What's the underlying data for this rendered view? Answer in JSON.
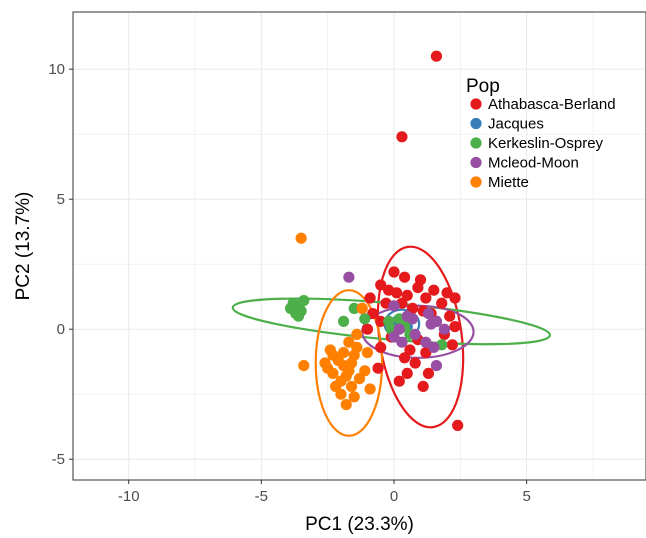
{
  "chart_data": {
    "type": "scatter",
    "xlabel": "PC1 (23.3%)",
    "ylabel": "PC2 (13.7%)",
    "xlim": [
      -12.1,
      9.5
    ],
    "ylim": [
      -5.8,
      12.2
    ],
    "x_ticks": [
      -10,
      -5,
      0,
      5
    ],
    "y_ticks": [
      -5,
      0,
      5,
      10
    ],
    "x_tick_labels": [
      "-10",
      "-5",
      "0",
      "5"
    ],
    "y_tick_labels": [
      "-5",
      "0",
      "5",
      "10"
    ],
    "grid": true,
    "legend": {
      "title": "Pop",
      "position": "top-right"
    },
    "series": [
      {
        "name": "Athabasca-Berland",
        "color": "#e41a1c",
        "ellipse": {
          "cx": 1.0,
          "cy": -0.3,
          "rx": 1.55,
          "ry": 3.5,
          "angle": -8
        },
        "points": [
          [
            1.6,
            10.5
          ],
          [
            0.3,
            7.4
          ],
          [
            2.4,
            -3.7
          ],
          [
            0.0,
            2.2
          ],
          [
            0.4,
            2.0
          ],
          [
            1.0,
            1.9
          ],
          [
            0.9,
            1.6
          ],
          [
            1.5,
            1.5
          ],
          [
            -0.5,
            1.7
          ],
          [
            -0.2,
            1.5
          ],
          [
            0.1,
            1.4
          ],
          [
            0.5,
            1.3
          ],
          [
            1.2,
            1.2
          ],
          [
            2.0,
            1.4
          ],
          [
            -0.9,
            1.2
          ],
          [
            -0.3,
            1.0
          ],
          [
            0.3,
            1.0
          ],
          [
            1.8,
            1.0
          ],
          [
            2.3,
            1.2
          ],
          [
            0.7,
            0.8
          ],
          [
            1.1,
            0.7
          ],
          [
            -1.2,
            0.8
          ],
          [
            -0.8,
            0.6
          ],
          [
            1.4,
            0.6
          ],
          [
            2.1,
            0.5
          ],
          [
            -0.5,
            0.3
          ],
          [
            0.0,
            0.1
          ],
          [
            1.6,
            0.3
          ],
          [
            2.3,
            0.1
          ],
          [
            -1.0,
            0.0
          ],
          [
            1.9,
            -0.2
          ],
          [
            -0.1,
            -0.3
          ],
          [
            0.9,
            -0.4
          ],
          [
            2.2,
            -0.6
          ],
          [
            -0.5,
            -0.7
          ],
          [
            0.6,
            -0.8
          ],
          [
            1.2,
            -0.9
          ],
          [
            0.4,
            -1.1
          ],
          [
            0.8,
            -1.3
          ],
          [
            -0.6,
            -1.5
          ],
          [
            0.5,
            -1.7
          ],
          [
            1.3,
            -1.7
          ],
          [
            0.2,
            -2.0
          ],
          [
            1.1,
            -2.2
          ]
        ]
      },
      {
        "name": "Jacques",
        "color": "#377eb8",
        "ellipse": {
          "cx": 0.3,
          "cy": 0.2,
          "rx": 0.65,
          "ry": 0.55,
          "angle": 0
        },
        "points": [
          [
            0.1,
            0.3
          ],
          [
            0.3,
            0.2
          ],
          [
            0.5,
            0.1
          ]
        ]
      },
      {
        "name": "Kerkeslin-Osprey",
        "color": "#4daf4a",
        "ellipse": {
          "cx": -0.1,
          "cy": 0.3,
          "rx": 6.0,
          "ry": 0.7,
          "angle": 5
        },
        "points": [
          [
            -3.8,
            1.0
          ],
          [
            -3.6,
            0.9
          ],
          [
            -3.5,
            0.7
          ],
          [
            -3.7,
            0.6
          ],
          [
            -3.4,
            1.1
          ],
          [
            -3.9,
            0.8
          ],
          [
            -3.6,
            0.5
          ],
          [
            -1.5,
            0.8
          ],
          [
            -1.1,
            0.4
          ],
          [
            -1.9,
            0.3
          ],
          [
            -0.2,
            0.3
          ],
          [
            0.2,
            0.4
          ],
          [
            0.4,
            0.1
          ],
          [
            -0.1,
            0.0
          ],
          [
            0.6,
            -0.2
          ],
          [
            1.8,
            -0.6
          ]
        ]
      },
      {
        "name": "Mcleod-Moon",
        "color": "#984ea3",
        "ellipse": {
          "cx": 0.9,
          "cy": -0.1,
          "rx": 2.1,
          "ry": 1.0,
          "angle": 0
        },
        "points": [
          [
            -1.7,
            2.0
          ],
          [
            0.0,
            0.9
          ],
          [
            0.5,
            0.5
          ],
          [
            1.3,
            0.6
          ],
          [
            1.6,
            0.3
          ],
          [
            1.9,
            0.0
          ],
          [
            0.8,
            -0.2
          ],
          [
            1.2,
            -0.5
          ],
          [
            1.5,
            -0.7
          ],
          [
            1.6,
            -1.4
          ],
          [
            0.3,
            -0.5
          ],
          [
            0.0,
            -0.3
          ],
          [
            1.4,
            0.2
          ],
          [
            0.7,
            0.4
          ],
          [
            0.2,
            0.0
          ]
        ]
      },
      {
        "name": "Miette",
        "color": "#ff7f00",
        "ellipse": {
          "cx": -1.7,
          "cy": -1.3,
          "rx": 1.25,
          "ry": 2.8,
          "angle": 0
        },
        "points": [
          [
            -3.5,
            3.5
          ],
          [
            -3.4,
            -1.4
          ],
          [
            -2.5,
            -1.5
          ],
          [
            -2.3,
            -1.7
          ],
          [
            -2.1,
            -1.2
          ],
          [
            -1.9,
            -1.4
          ],
          [
            -1.8,
            -1.8
          ],
          [
            -2.0,
            -2.0
          ],
          [
            -1.7,
            -1.6
          ],
          [
            -1.6,
            -1.3
          ],
          [
            -1.5,
            -1.0
          ],
          [
            -1.4,
            -0.7
          ],
          [
            -1.9,
            -0.9
          ],
          [
            -2.2,
            -2.2
          ],
          [
            -2.0,
            -2.5
          ],
          [
            -1.8,
            -2.9
          ],
          [
            -1.6,
            -2.2
          ],
          [
            -1.3,
            -1.9
          ],
          [
            -1.1,
            -1.6
          ],
          [
            -0.9,
            -2.3
          ],
          [
            -2.4,
            -0.8
          ],
          [
            -1.7,
            -0.5
          ],
          [
            -1.4,
            -0.2
          ],
          [
            -1.0,
            -0.9
          ],
          [
            -2.3,
            -1.0
          ],
          [
            -1.2,
            0.8
          ],
          [
            -2.6,
            -1.3
          ],
          [
            -1.5,
            -2.6
          ]
        ]
      }
    ]
  }
}
